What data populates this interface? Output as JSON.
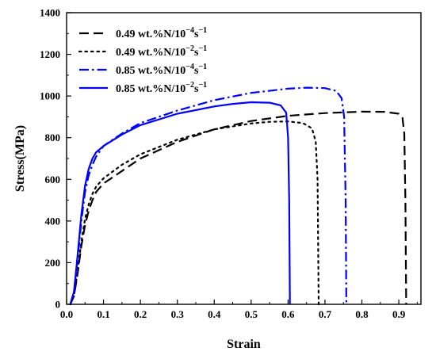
{
  "chart_data": {
    "type": "line",
    "xlabel": "Strain",
    "ylabel": "Stress(MPa)",
    "xlim": [
      0.0,
      0.96
    ],
    "ylim": [
      0,
      1400
    ],
    "x_ticks": [
      0.0,
      0.1,
      0.2,
      0.3,
      0.4,
      0.5,
      0.6,
      0.7,
      0.8,
      0.9
    ],
    "x_tick_labels": [
      "0.0",
      "0.1",
      "0.2",
      "0.3",
      "0.4",
      "0.5",
      "0.6",
      "0.7",
      "0.8",
      "0.9"
    ],
    "y_ticks": [
      0,
      200,
      400,
      600,
      800,
      1000,
      1200,
      1400
    ],
    "y_tick_labels": [
      "0",
      "200",
      "400",
      "600",
      "800",
      "1000",
      "1200",
      "1400"
    ],
    "grid": false,
    "legend_position": "top-left",
    "series": [
      {
        "name": "0.49 wt.%N/10",
        "name_sup": "−4",
        "name_suffix": "s",
        "name_suffix_sup": "−1",
        "color": "#000000",
        "style": "dashed",
        "points": [
          [
            0.01,
            0
          ],
          [
            0.02,
            40
          ],
          [
            0.03,
            150
          ],
          [
            0.04,
            280
          ],
          [
            0.05,
            380
          ],
          [
            0.06,
            450
          ],
          [
            0.07,
            500
          ],
          [
            0.08,
            540
          ],
          [
            0.1,
            580
          ],
          [
            0.15,
            640
          ],
          [
            0.2,
            700
          ],
          [
            0.3,
            780
          ],
          [
            0.4,
            840
          ],
          [
            0.5,
            880
          ],
          [
            0.6,
            905
          ],
          [
            0.7,
            918
          ],
          [
            0.8,
            925
          ],
          [
            0.86,
            924
          ],
          [
            0.9,
            915
          ],
          [
            0.91,
            895
          ],
          [
            0.915,
            820
          ],
          [
            0.918,
            500
          ],
          [
            0.92,
            0
          ]
        ]
      },
      {
        "name": "0.49 wt.%N/10",
        "name_sup": "−2",
        "name_suffix": "s",
        "name_suffix_sup": "−1",
        "color": "#000000",
        "style": "dotted",
        "points": [
          [
            0.01,
            0
          ],
          [
            0.02,
            40
          ],
          [
            0.03,
            160
          ],
          [
            0.04,
            300
          ],
          [
            0.05,
            410
          ],
          [
            0.06,
            480
          ],
          [
            0.07,
            530
          ],
          [
            0.08,
            565
          ],
          [
            0.1,
            605
          ],
          [
            0.15,
            670
          ],
          [
            0.2,
            720
          ],
          [
            0.3,
            790
          ],
          [
            0.4,
            840
          ],
          [
            0.5,
            868
          ],
          [
            0.55,
            876
          ],
          [
            0.6,
            878
          ],
          [
            0.64,
            870
          ],
          [
            0.665,
            845
          ],
          [
            0.675,
            780
          ],
          [
            0.68,
            600
          ],
          [
            0.683,
            0
          ]
        ]
      },
      {
        "name": "0.85 wt.%N/10",
        "name_sup": "−4",
        "name_suffix": "s",
        "name_suffix_sup": "−1",
        "color": "#0000ff",
        "style": "dashdot",
        "points": [
          [
            0.01,
            0
          ],
          [
            0.02,
            60
          ],
          [
            0.03,
            220
          ],
          [
            0.04,
            400
          ],
          [
            0.05,
            540
          ],
          [
            0.06,
            620
          ],
          [
            0.07,
            670
          ],
          [
            0.08,
            710
          ],
          [
            0.1,
            760
          ],
          [
            0.15,
            820
          ],
          [
            0.2,
            870
          ],
          [
            0.3,
            930
          ],
          [
            0.4,
            980
          ],
          [
            0.5,
            1015
          ],
          [
            0.6,
            1035
          ],
          [
            0.65,
            1040
          ],
          [
            0.7,
            1038
          ],
          [
            0.73,
            1025
          ],
          [
            0.745,
            990
          ],
          [
            0.752,
            900
          ],
          [
            0.756,
            500
          ],
          [
            0.758,
            0
          ]
        ]
      },
      {
        "name": "0.85 wt.%N/10",
        "name_sup": "−2",
        "name_suffix": "s",
        "name_suffix_sup": "−1",
        "color": "#0000ff",
        "style": "solid",
        "points": [
          [
            0.01,
            0
          ],
          [
            0.02,
            60
          ],
          [
            0.03,
            240
          ],
          [
            0.04,
            430
          ],
          [
            0.05,
            570
          ],
          [
            0.06,
            650
          ],
          [
            0.07,
            700
          ],
          [
            0.08,
            730
          ],
          [
            0.1,
            760
          ],
          [
            0.15,
            815
          ],
          [
            0.2,
            860
          ],
          [
            0.3,
            915
          ],
          [
            0.4,
            950
          ],
          [
            0.45,
            962
          ],
          [
            0.5,
            970
          ],
          [
            0.55,
            968
          ],
          [
            0.58,
            955
          ],
          [
            0.595,
            920
          ],
          [
            0.6,
            800
          ],
          [
            0.603,
            500
          ],
          [
            0.605,
            0
          ]
        ]
      }
    ]
  }
}
